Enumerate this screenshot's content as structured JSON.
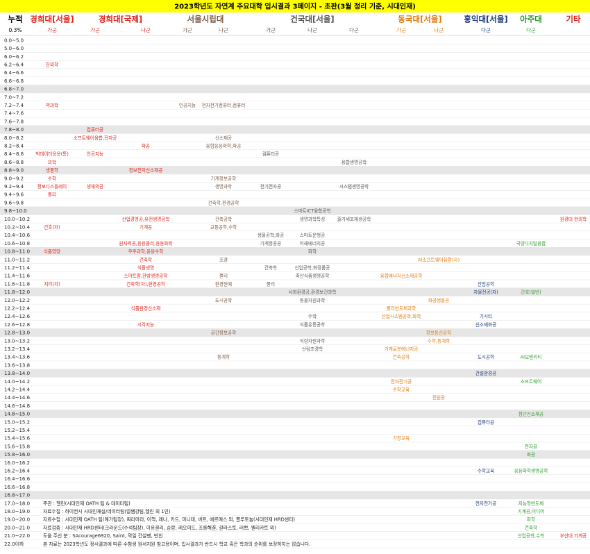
{
  "header": {
    "title": "2023학년도 자연계 주요대학 입시결과 3페이지 - 초판(3월 정리 기준, 시대인재)",
    "corner": "누적",
    "unit": "0.3%"
  },
  "universities": [
    {
      "name": "경희대[서울]",
      "color": "#e0231b",
      "tracks": [
        "가군"
      ]
    },
    {
      "name": "경희대[국제]",
      "color": "#e0231b",
      "tracks": [
        "가군",
        "나군"
      ]
    },
    {
      "name": "서울시립대",
      "color": "#7a5a45",
      "tracks": [
        "가군",
        "나군"
      ]
    },
    {
      "name": "건국대[서울]",
      "color": "#555555",
      "tracks": [
        "가군",
        "나군",
        "다군"
      ]
    },
    {
      "name": "동국대[서울]",
      "color": "#e07b10",
      "tracks": [
        "가군",
        "나군"
      ]
    },
    {
      "name": "홍익대[서울]",
      "color": "#1f3a7a",
      "tracks": [
        "다군"
      ]
    },
    {
      "name": "아주대",
      "color": "#2a9a2a",
      "tracks": [
        "다군"
      ]
    },
    {
      "name": "기타",
      "color": "#e0231b",
      "tracks": []
    }
  ],
  "rows": [
    {
      "range": "0.0~5.0"
    },
    {
      "range": "5.0~6.0"
    },
    {
      "range": "6.0~6.2"
    },
    {
      "range": "6.2~6.4",
      "cells": [
        "한의학",
        null,
        null,
        null,
        null,
        null,
        null,
        null,
        null,
        null,
        null,
        null,
        null
      ]
    },
    {
      "range": "6.4~6.6"
    },
    {
      "range": "6.6~6.8"
    },
    {
      "range": "6.8~7.0"
    },
    {
      "range": "7.0~7.2"
    },
    {
      "range": "7.2~7.4",
      "cells": [
        "약과학",
        null,
        null,
        "인공지능",
        "전자전기컴퓨터,컴퓨터",
        null,
        null,
        null,
        null,
        null,
        null,
        null,
        null
      ]
    },
    {
      "range": "7.4~7.6"
    },
    {
      "range": "7.6~7.8"
    },
    {
      "range": "7.8~8.0",
      "cells": [
        null,
        "컴퓨터공",
        null,
        null,
        null,
        null,
        null,
        null,
        null,
        null,
        null,
        null,
        null
      ]
    },
    {
      "range": "8.0~8.2",
      "cells": [
        null,
        "소프트웨어융합,전자공",
        null,
        null,
        "신소재공",
        null,
        null,
        null,
        null,
        null,
        null,
        null,
        null
      ]
    },
    {
      "range": "8.2~8.4",
      "cells": [
        null,
        null,
        "화공",
        null,
        "융합응용화학,화공",
        null,
        null,
        null,
        null,
        null,
        null,
        null,
        null
      ]
    },
    {
      "range": "8.4~8.6",
      "cells": [
        "빅데이터응용(통)",
        "인공지능",
        null,
        null,
        null,
        "컴퓨터공",
        null,
        null,
        null,
        null,
        null,
        null,
        null
      ]
    },
    {
      "range": "8.6~8.8",
      "cells": [
        "의학",
        null,
        null,
        null,
        null,
        null,
        null,
        "융합생명공학",
        null,
        null,
        null,
        null,
        null
      ]
    },
    {
      "range": "8.8~9.0",
      "cells": [
        "생물학",
        null,
        "정보전자신소재공",
        null,
        null,
        null,
        null,
        null,
        null,
        null,
        null,
        null,
        null
      ]
    },
    {
      "range": "9.0~9.2",
      "cells": [
        "수학",
        null,
        null,
        null,
        "기계정보공학",
        null,
        null,
        null,
        null,
        null,
        null,
        null,
        null
      ]
    },
    {
      "range": "9.2~9.4",
      "cells": [
        "정보디스플레이",
        "생체의공",
        null,
        null,
        "생명과학",
        "전기전자공",
        null,
        "시스템생명공학",
        null,
        null,
        null,
        null,
        null
      ]
    },
    {
      "range": "9.4~9.6",
      "cells": [
        "물리",
        null,
        null,
        null,
        null,
        null,
        null,
        null,
        null,
        null,
        null,
        null,
        null
      ]
    },
    {
      "range": "9.6~9.8",
      "cells": [
        null,
        null,
        null,
        null,
        "건축학,환경공학",
        null,
        null,
        null,
        null,
        null,
        null,
        null,
        null
      ]
    },
    {
      "range": "9.8~10.0",
      "cells": [
        null,
        null,
        null,
        null,
        null,
        null,
        "스마트ICT융합공학",
        null,
        null,
        null,
        null,
        null,
        null
      ]
    },
    {
      "range": "10.0~10.2",
      "cells": [
        null,
        null,
        "산업경영공,유전생명공학",
        null,
        "건축공학",
        null,
        "생명과학특성",
        "줄기세포재생공학",
        null,
        null,
        null,
        null,
        "원광대 한의학"
      ]
    },
    {
      "range": "10.2~10.4",
      "cells": [
        "간호(자)",
        null,
        "기계공",
        null,
        "교통공학,수학",
        null,
        null,
        null,
        null,
        null,
        null,
        null,
        null
      ]
    },
    {
      "range": "10.4~10.6",
      "cells": [
        null,
        null,
        null,
        null,
        null,
        "생물공학,화공",
        "스마트운행공",
        null,
        null,
        null,
        null,
        null,
        null
      ]
    },
    {
      "range": "10.6~10.8",
      "cells": [
        null,
        null,
        "원자력공,응용물리,응용화학",
        null,
        null,
        "기계항공공",
        "미래에너지공",
        null,
        null,
        null,
        null,
        "국방디지털융합",
        null
      ]
    },
    {
      "range": "10.8~11.0",
      "cells": [
        "식품영양",
        null,
        "우주과학,응용수학",
        null,
        null,
        null,
        "화학",
        null,
        null,
        null,
        null,
        null,
        null
      ]
    },
    {
      "range": "11.0~11.2",
      "cells": [
        null,
        null,
        "건축학",
        null,
        "조경",
        null,
        null,
        null,
        null,
        "AI소프트웨어융합(자)",
        null,
        null,
        null
      ]
    },
    {
      "range": "11.2~11.4",
      "cells": [
        null,
        null,
        "식품생명",
        null,
        null,
        "건축학",
        "산업공학,화장품공",
        null,
        null,
        null,
        null,
        null,
        null
      ]
    },
    {
      "range": "11.4~11.6",
      "cells": [
        null,
        null,
        "스마트팜,한방생명공학",
        null,
        "물리",
        null,
        "축산식품생명공학",
        null,
        "융합에너지신소재공학",
        null,
        null,
        null,
        null
      ]
    },
    {
      "range": "11.6~11.8",
      "cells": [
        "지리(자)",
        null,
        "건축학(자),환경공학",
        null,
        "환경원예",
        "물리",
        null,
        null,
        null,
        null,
        "산업공학",
        null,
        null
      ]
    },
    {
      "range": "11.8~12.0",
      "cells": [
        null,
        null,
        null,
        null,
        null,
        null,
        "사회환경공,환경보건과학",
        null,
        null,
        null,
        "자율전공(자)",
        "간호(일반)",
        null
      ]
    },
    {
      "range": "12.0~12.2",
      "cells": [
        null,
        null,
        null,
        null,
        "도시공학",
        null,
        "동물자원과학",
        null,
        null,
        "화공생물공",
        null,
        null,
        null
      ]
    },
    {
      "range": "12.2~12.4",
      "cells": [
        null,
        null,
        "식품환경신소재",
        null,
        null,
        null,
        null,
        null,
        "물리반도체과학",
        null,
        null,
        null,
        null
      ]
    },
    {
      "range": "12.4~12.6",
      "cells": [
        null,
        null,
        null,
        null,
        null,
        null,
        "수학",
        null,
        "산업시스템공학,화학",
        null,
        "기시티",
        null,
        null
      ]
    },
    {
      "range": "12.6~12.8",
      "cells": [
        null,
        null,
        "시각지능",
        null,
        null,
        null,
        "식품유통공학",
        null,
        null,
        null,
        "신소재화공",
        null,
        null
      ]
    },
    {
      "range": "12.8~13.0",
      "cells": [
        null,
        null,
        null,
        null,
        "공간정보공학",
        null,
        null,
        null,
        null,
        "정보통신공학",
        null,
        null,
        null
      ]
    },
    {
      "range": "13.0~13.2",
      "cells": [
        null,
        null,
        null,
        null,
        null,
        null,
        "식량자원과학",
        null,
        null,
        "수학,통계학",
        null,
        null,
        null
      ]
    },
    {
      "range": "13.2~13.4",
      "cells": [
        null,
        null,
        null,
        null,
        null,
        null,
        "산림조경학",
        null,
        "기계로봇에너지공",
        null,
        null,
        null,
        null
      ]
    },
    {
      "range": "13.4~13.6",
      "cells": [
        null,
        null,
        null,
        null,
        "통계학",
        null,
        null,
        null,
        "건축공학",
        null,
        "도시공학",
        "AI모빌리티",
        null
      ]
    },
    {
      "range": "13.6~13.8"
    },
    {
      "range": "13.8~14.0",
      "cells": [
        null,
        null,
        null,
        null,
        null,
        null,
        null,
        null,
        null,
        null,
        "건설환경공",
        null,
        null
      ]
    },
    {
      "range": "14.0~14.2",
      "cells": [
        null,
        null,
        null,
        null,
        null,
        null,
        null,
        null,
        "전자전기공",
        null,
        null,
        "소프트웨어",
        null
      ]
    },
    {
      "range": "14.2~14.4",
      "cells": [
        null,
        null,
        null,
        null,
        null,
        null,
        null,
        null,
        "수학교육",
        null,
        null,
        null,
        null
      ]
    },
    {
      "range": "14.4~14.6",
      "cells": [
        null,
        null,
        null,
        null,
        null,
        null,
        null,
        null,
        null,
        "전원공",
        null,
        null,
        null
      ]
    },
    {
      "range": "14.6~14.8"
    },
    {
      "range": "14.8~15.0",
      "cells": [
        null,
        null,
        null,
        null,
        null,
        null,
        null,
        null,
        null,
        null,
        null,
        "첨단신소재공",
        null
      ]
    },
    {
      "range": "15.0~15.2",
      "cells": [
        null,
        null,
        null,
        null,
        null,
        null,
        null,
        null,
        null,
        null,
        "컴퓨터공",
        null,
        null
      ]
    },
    {
      "range": "15.2~15.4"
    },
    {
      "range": "15.4~15.6",
      "cells": [
        null,
        null,
        null,
        null,
        null,
        null,
        null,
        null,
        "가정교육",
        null,
        null,
        null,
        null
      ]
    },
    {
      "range": "15.6~15.8",
      "cells": [
        null,
        null,
        null,
        null,
        null,
        null,
        null,
        null,
        null,
        null,
        null,
        "전자공",
        null
      ]
    },
    {
      "range": "15.8~16.0",
      "cells": [
        null,
        null,
        null,
        null,
        null,
        null,
        null,
        null,
        null,
        null,
        null,
        "화공",
        null
      ]
    },
    {
      "range": "16.0~16.2"
    },
    {
      "range": "16.2~16.4",
      "cells": [
        null,
        null,
        null,
        null,
        null,
        null,
        null,
        null,
        null,
        null,
        "수학교육",
        "응용화학생명공학",
        null
      ]
    },
    {
      "range": "16.4~16.6"
    },
    {
      "range": "16.6~16.8"
    },
    {
      "range": "16.8~17.0"
    },
    {
      "range": "17.0~18.0",
      "note": "주관 : 헬린(시대인재 OATH 팀 & 데이터팀)",
      "cells": [
        null,
        null,
        null,
        null,
        null,
        null,
        null,
        null,
        null,
        null,
        "전자전기공",
        "지능형반도체",
        null
      ]
    },
    {
      "range": "18.0~19.0",
      "note": "자료수집 : 하이컨시 시대인재실/데이터팀(얼쌤강팀,헬린 외 1인)",
      "cells": [
        null,
        null,
        null,
        null,
        null,
        null,
        null,
        null,
        null,
        null,
        null,
        "기계공,미디어",
        null
      ]
    },
    {
      "range": "19.0~20.0",
      "note": "자료수집 : 시대인재 OATH 팀(메가팀장), 짜라마라, 이꺽, 레나, 키드, 피니테, 버트, 에르메스 외, 플루토늄(시대인재 HRD센터)",
      "cells": [
        null,
        null,
        null,
        null,
        null,
        null,
        null,
        null,
        null,
        null,
        null,
        "화학",
        null
      ]
    },
    {
      "range": "20.0~21.0",
      "note": "자료검증 : 시대인재 HRD센터(크라운드(수석팀장), 이유결리, 승랑, 레오피드, 조롱해결, 갈라스토, 러쁘, 엘리카트 외)",
      "cells": [
        null,
        null,
        null,
        null,
        null,
        null,
        null,
        null,
        null,
        null,
        null,
        "건축학",
        null
      ]
    },
    {
      "range": "21.0~22.0",
      "note": "도움 주신 분 : SAcourage6920, Saint, 막일 건설맨, 반친",
      "cells": [
        null,
        null,
        null,
        null,
        null,
        null,
        null,
        null,
        null,
        null,
        null,
        "산업공학,수학",
        "부산대 기계공"
      ]
    },
    {
      "range": "22.0이하",
      "note": "본 자료는 2023학년도 정시결과에 따른 수험생 원서지원 참고용이며, 입시결과가 반드시 학교 혹은 학과의 순위를 보장하지는 않습니다."
    }
  ]
}
